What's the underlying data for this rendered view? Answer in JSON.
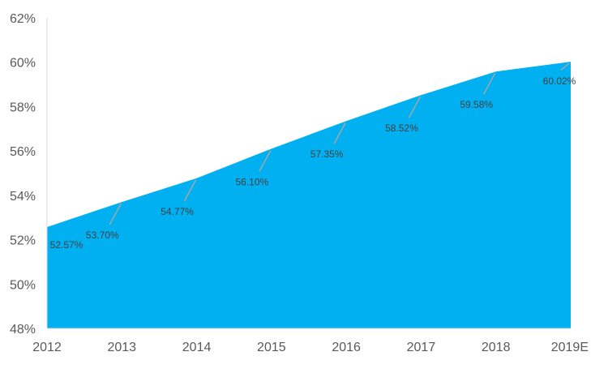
{
  "chart_data": {
    "type": "area",
    "categories": [
      "2012",
      "2013",
      "2014",
      "2015",
      "2016",
      "2017",
      "2018",
      "2019E"
    ],
    "values": [
      52.57,
      53.7,
      54.77,
      56.1,
      57.35,
      58.52,
      59.58,
      60.02
    ],
    "data_labels": [
      "52.57%",
      "53.70%",
      "54.77%",
      "56.10%",
      "57.35%",
      "58.52%",
      "59.58%",
      "60.02%"
    ],
    "ylim": [
      48,
      62
    ],
    "y_ticks": [
      48,
      50,
      52,
      54,
      56,
      58,
      60,
      62
    ],
    "y_tick_labels": [
      "48%",
      "50%",
      "52%",
      "54%",
      "56%",
      "58%",
      "60%",
      "62%"
    ],
    "grid": false,
    "legend": "none",
    "colors": {
      "area": "#00B0F0",
      "axis": "#D9D9D9",
      "leader": "#A6A6A6",
      "tick_text": "#595959",
      "label_text": "#404040"
    }
  }
}
